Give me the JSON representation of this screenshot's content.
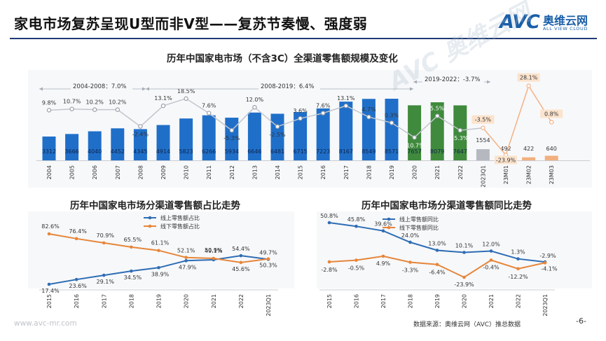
{
  "header": {
    "title": "家电市场复苏呈现U型而非V型——复苏节奏慢、强度弱",
    "logo_mark": "AVC",
    "logo_cn": "奥维云网",
    "logo_en": "ALL VIEW CLOUD",
    "watermark": "AVC 奥维云网"
  },
  "footer": {
    "url": "www.avc-mr.com",
    "source": "数据来源：奥维云网（AVC）推总数据",
    "page": "-6-"
  },
  "colors": {
    "bar_blue": "#1f6fc9",
    "bar_green": "#3f8a3c",
    "bar_gray": "#b5b9bf",
    "bar_peach": "#f2b07e",
    "line_gray": "#c2c6cc",
    "line_peach": "#f4b183",
    "online": "#2e6db4",
    "offline": "#e6863a"
  },
  "chart_data": [
    {
      "type": "bar",
      "title": "历年中国家电市场（不含3C）全渠道零售额规模及变化",
      "categories": [
        "2004",
        "2005",
        "2006",
        "2007",
        "2008",
        "2009",
        "2010",
        "2011",
        "2012",
        "2013",
        "2014",
        "2015",
        "2016",
        "2017",
        "2018",
        "2019",
        "2020",
        "2021",
        "2022",
        "2023Q1",
        "23M01",
        "23M02",
        "23M03"
      ],
      "values": [
        3312,
        3666,
        4040,
        4452,
        4345,
        4914,
        5823,
        6266,
        5934,
        6646,
        6481,
        6715,
        7223,
        8167,
        8549,
        8571,
        7657,
        8079,
        7647,
        1554,
        492,
        422,
        640
      ],
      "growth_labels": [
        "9.8%",
        "10.7%",
        "10.2%",
        "10.2%",
        "-2.4%",
        "13.1%",
        "18.5%",
        "7.6%",
        "-5.3%",
        "12.0%",
        "-2.5%",
        "3.6%",
        "7.6%",
        "13.1%",
        "4.7%",
        "0.3%",
        "-10.7%",
        "5.5%",
        "-5.3%",
        "-3.5%",
        "-23.9%",
        "28.1%",
        "0.8%"
      ],
      "growth_values": [
        9.8,
        10.7,
        10.2,
        10.2,
        -2.4,
        13.1,
        18.5,
        7.6,
        -5.3,
        12.0,
        -2.5,
        3.6,
        7.6,
        13.1,
        4.7,
        0.3,
        -10.7,
        5.5,
        -5.3,
        -3.5,
        -23.9,
        28.1,
        0.8
      ],
      "annotations": [
        "2004-2008：7.0%",
        "2008-2019：6.4%",
        "2019-2022：-3.7%"
      ]
    },
    {
      "type": "line",
      "title": "历年中国家电市场分渠道零售额占比走势",
      "categories": [
        "2015",
        "2016",
        "2017",
        "2018",
        "2019",
        "2020",
        "2021",
        "2022",
        "2023Q1"
      ],
      "series": [
        {
          "name": "线上零售额占比",
          "values": [
            17.4,
            23.6,
            29.1,
            34.5,
            38.9,
            47.9,
            49.1,
            54.4,
            49.7
          ],
          "labels": [
            "17.4%",
            "23.6%",
            "29.1%",
            "34.5%",
            "38.9%",
            "47.9%",
            "49.1%",
            "54.4%",
            "49.7%"
          ]
        },
        {
          "name": "线下零售额占比",
          "values": [
            82.6,
            76.4,
            70.9,
            65.5,
            61.1,
            52.1,
            50.9,
            45.6,
            50.3
          ],
          "labels": [
            "82.6%",
            "76.4%",
            "70.9%",
            "65.5%",
            "61.1%",
            "52.1%",
            "50.9%",
            "45.6%",
            "50.3%"
          ]
        }
      ]
    },
    {
      "type": "line",
      "title": "历年中国家电市场分渠道零售额同比走势",
      "categories": [
        "2015",
        "2016",
        "2017",
        "2018",
        "2019",
        "2020",
        "2021",
        "2022",
        "2023Q1"
      ],
      "series": [
        {
          "name": "线上零售额同比",
          "values": [
            50.8,
            45.8,
            39.6,
            24.0,
            13.0,
            10.1,
            12.0,
            1.3,
            -2.9
          ],
          "labels": [
            "50.8%",
            "45.8%",
            "39.6%",
            "24.0%",
            "13.0%",
            "10.1%",
            "12.0%",
            "1.3%",
            "-2.9%"
          ]
        },
        {
          "name": "线下零售额同比",
          "values": [
            -2.8,
            -0.5,
            4.9,
            -3.3,
            -6.4,
            -23.9,
            -0.4,
            -12.2,
            -4.1
          ],
          "labels": [
            "-2.8%",
            "-0.5%",
            "4.9%",
            "-3.3%",
            "-6.4%",
            "-23.9%",
            "-0.4%",
            "-12.2%",
            "-4.1%"
          ]
        }
      ]
    }
  ]
}
